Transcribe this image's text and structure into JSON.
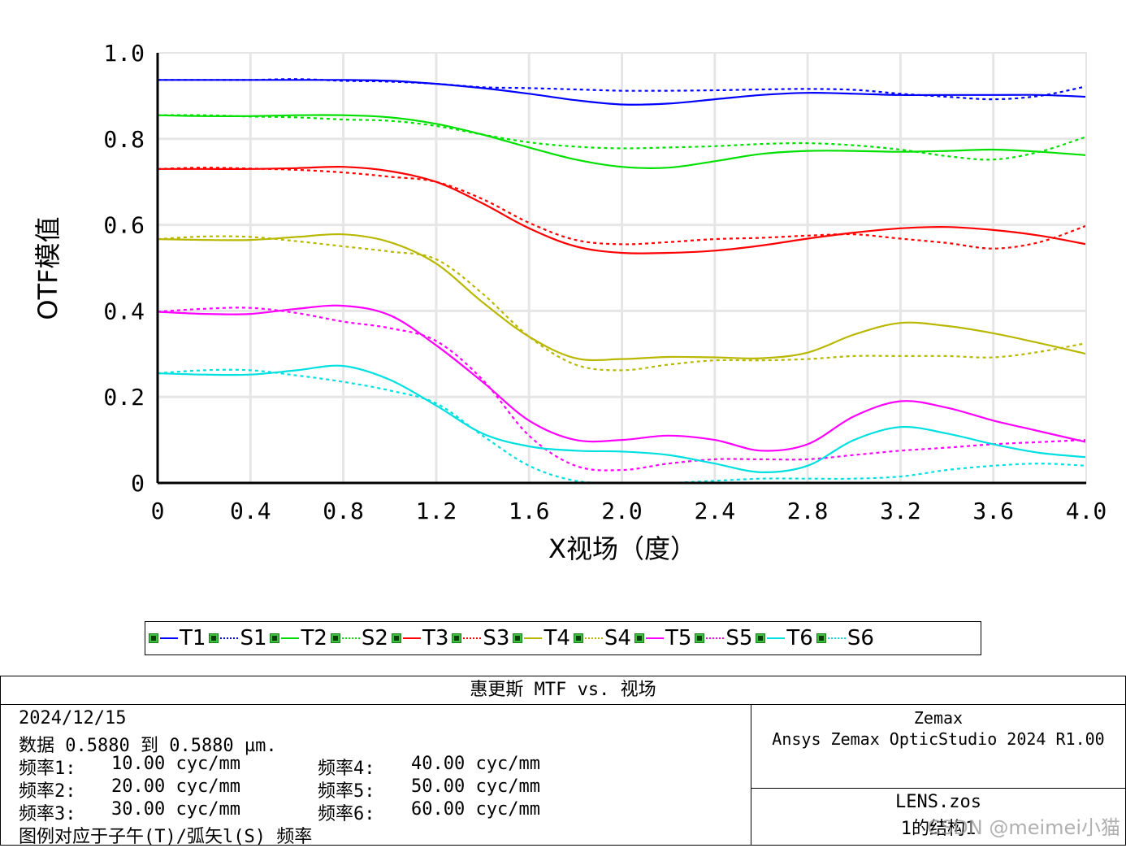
{
  "chart_data": {
    "type": "line",
    "xlabel": "X视场（度）",
    "ylabel": "OTF模值",
    "xlim": [
      0,
      4.0
    ],
    "ylim": [
      0,
      1.0
    ],
    "x_ticks": [
      "0",
      "0.4",
      "0.8",
      "1.2",
      "1.6",
      "2.0",
      "2.4",
      "2.8",
      "3.2",
      "3.6",
      "4.0"
    ],
    "y_ticks": [
      "0",
      "0.2",
      "0.4",
      "0.6",
      "0.8",
      "1.0"
    ],
    "grid": true,
    "legend_position": "bottom",
    "x": [
      0,
      0.2,
      0.4,
      0.6,
      0.8,
      1.0,
      1.2,
      1.4,
      1.6,
      1.8,
      2.0,
      2.2,
      2.4,
      2.6,
      2.8,
      3.0,
      3.2,
      3.4,
      3.6,
      3.8,
      4.0
    ],
    "series": [
      {
        "name": "T1",
        "color": "#0000ff",
        "style": "solid",
        "values": [
          0.937,
          0.937,
          0.937,
          0.937,
          0.937,
          0.935,
          0.928,
          0.918,
          0.905,
          0.89,
          0.88,
          0.882,
          0.892,
          0.902,
          0.907,
          0.905,
          0.902,
          0.902,
          0.902,
          0.902,
          0.898
        ]
      },
      {
        "name": "S1",
        "color": "#0000ff",
        "style": "dotted",
        "values": [
          0.937,
          0.937,
          0.937,
          0.939,
          0.935,
          0.933,
          0.928,
          0.92,
          0.918,
          0.915,
          0.912,
          0.912,
          0.913,
          0.915,
          0.916,
          0.914,
          0.905,
          0.898,
          0.892,
          0.9,
          0.922
        ]
      },
      {
        "name": "T2",
        "color": "#00e000",
        "style": "solid",
        "values": [
          0.855,
          0.853,
          0.853,
          0.855,
          0.855,
          0.85,
          0.835,
          0.81,
          0.78,
          0.752,
          0.735,
          0.733,
          0.748,
          0.765,
          0.772,
          0.772,
          0.77,
          0.772,
          0.775,
          0.77,
          0.762
        ]
      },
      {
        "name": "S2",
        "color": "#00e000",
        "style": "dotted",
        "values": [
          0.855,
          0.855,
          0.852,
          0.85,
          0.845,
          0.842,
          0.83,
          0.81,
          0.792,
          0.782,
          0.778,
          0.78,
          0.783,
          0.788,
          0.79,
          0.785,
          0.775,
          0.76,
          0.752,
          0.77,
          0.805
        ]
      },
      {
        "name": "T3",
        "color": "#ff0000",
        "style": "solid",
        "values": [
          0.73,
          0.73,
          0.73,
          0.732,
          0.735,
          0.725,
          0.7,
          0.65,
          0.592,
          0.55,
          0.535,
          0.535,
          0.54,
          0.552,
          0.568,
          0.582,
          0.592,
          0.595,
          0.588,
          0.575,
          0.555
        ]
      },
      {
        "name": "S3",
        "color": "#ff0000",
        "style": "dotted",
        "values": [
          0.73,
          0.733,
          0.731,
          0.728,
          0.722,
          0.712,
          0.7,
          0.66,
          0.605,
          0.565,
          0.555,
          0.56,
          0.567,
          0.57,
          0.575,
          0.578,
          0.568,
          0.558,
          0.545,
          0.56,
          0.598
        ]
      },
      {
        "name": "T4",
        "color": "#b8b800",
        "style": "solid",
        "values": [
          0.567,
          0.565,
          0.565,
          0.572,
          0.578,
          0.56,
          0.51,
          0.42,
          0.34,
          0.29,
          0.288,
          0.293,
          0.292,
          0.29,
          0.303,
          0.345,
          0.372,
          0.365,
          0.348,
          0.325,
          0.3
        ]
      },
      {
        "name": "S4",
        "color": "#b8b800",
        "style": "dotted",
        "values": [
          0.567,
          0.573,
          0.572,
          0.562,
          0.55,
          0.538,
          0.52,
          0.44,
          0.34,
          0.275,
          0.262,
          0.275,
          0.285,
          0.285,
          0.288,
          0.295,
          0.295,
          0.295,
          0.292,
          0.305,
          0.325
        ]
      },
      {
        "name": "T5",
        "color": "#ff00ff",
        "style": "solid",
        "values": [
          0.398,
          0.393,
          0.393,
          0.405,
          0.412,
          0.39,
          0.32,
          0.235,
          0.145,
          0.1,
          0.1,
          0.11,
          0.1,
          0.075,
          0.09,
          0.155,
          0.19,
          0.175,
          0.145,
          0.12,
          0.095
        ]
      },
      {
        "name": "S5",
        "color": "#ff00ff",
        "style": "dotted",
        "values": [
          0.398,
          0.405,
          0.407,
          0.395,
          0.375,
          0.36,
          0.33,
          0.24,
          0.11,
          0.04,
          0.03,
          0.045,
          0.055,
          0.055,
          0.055,
          0.065,
          0.075,
          0.082,
          0.09,
          0.095,
          0.1
        ]
      },
      {
        "name": "T6",
        "color": "#00e0e0",
        "style": "solid",
        "values": [
          0.255,
          0.252,
          0.252,
          0.262,
          0.272,
          0.24,
          0.18,
          0.115,
          0.085,
          0.075,
          0.073,
          0.065,
          0.045,
          0.025,
          0.04,
          0.1,
          0.13,
          0.115,
          0.09,
          0.07,
          0.06
        ]
      },
      {
        "name": "S6",
        "color": "#00e0e0",
        "style": "dotted",
        "values": [
          0.255,
          0.262,
          0.262,
          0.25,
          0.235,
          0.215,
          0.185,
          0.11,
          0.04,
          0.005,
          0.0,
          0.0,
          0.005,
          0.01,
          0.01,
          0.01,
          0.015,
          0.03,
          0.04,
          0.045,
          0.04
        ]
      }
    ]
  },
  "info": {
    "title": "惠更斯 MTF vs. 视场",
    "date": "2024/12/15",
    "data_range": "数据 0.5880 到 0.5880 µm.",
    "freq_left": [
      {
        "label": "频率1:",
        "value": "10.00 cyc/mm"
      },
      {
        "label": "频率2:",
        "value": "20.00 cyc/mm"
      },
      {
        "label": "频率3:",
        "value": "30.00 cyc/mm"
      }
    ],
    "freq_right": [
      {
        "label": "频率4:",
        "value": "40.00 cyc/mm"
      },
      {
        "label": "频率5:",
        "value": "50.00 cyc/mm"
      },
      {
        "label": "频率6:",
        "value": "60.00 cyc/mm"
      }
    ],
    "legend_note": "图例对应于子午(T)/弧矢l(S) 频率",
    "company": "Zemax",
    "product": "Ansys Zemax OpticStudio 2024 R1.00",
    "file": "LENS.zos",
    "config": "1的结构1",
    "watermark": "CSDN @meimei小猫"
  }
}
